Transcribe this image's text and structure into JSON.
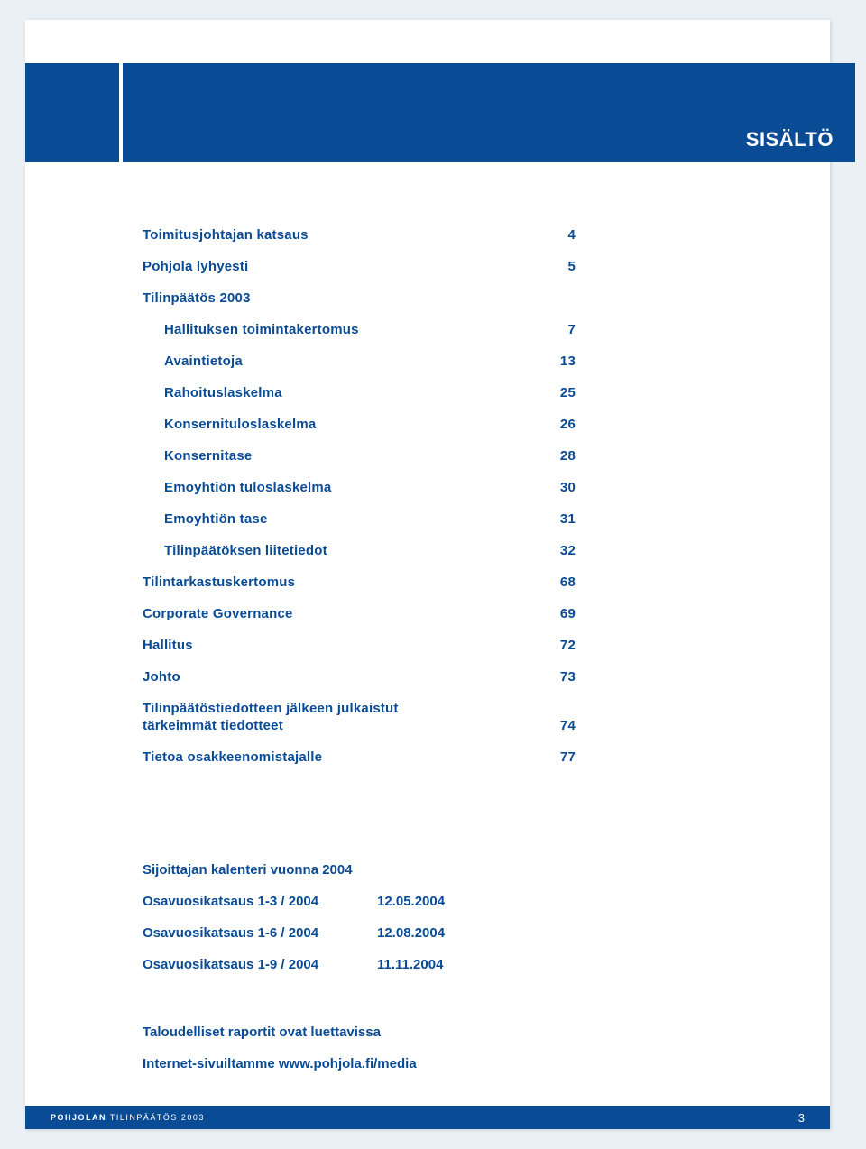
{
  "colors": {
    "brand_blue": "#0a4b95",
    "page_bg": "#eaf0f4",
    "white": "#ffffff"
  },
  "typography": {
    "body_font": "Arial, Helvetica, sans-serif",
    "toc_fontsize": 15,
    "toc_fontweight": 600,
    "header_fontsize": 22,
    "header_fontweight": 700,
    "footer_fontsize": 9
  },
  "header": {
    "title": "SISÄLTÖ"
  },
  "toc": {
    "items": [
      {
        "label": "Toimitusjohtajan katsaus",
        "page": "4",
        "indent": false
      },
      {
        "label": "Pohjola lyhyesti",
        "page": "5",
        "indent": false
      },
      {
        "label": "Tilinpäätös 2003",
        "page": "",
        "indent": false
      },
      {
        "label": "Hallituksen toimintakertomus",
        "page": "7",
        "indent": true
      },
      {
        "label": "Avaintietoja",
        "page": "13",
        "indent": true
      },
      {
        "label": "Rahoituslaskelma",
        "page": "25",
        "indent": true
      },
      {
        "label": "Konsernituloslaskelma",
        "page": "26",
        "indent": true
      },
      {
        "label": "Konsernitase",
        "page": "28",
        "indent": true
      },
      {
        "label": "Emoyhtiön tuloslaskelma",
        "page": "30",
        "indent": true
      },
      {
        "label": "Emoyhtiön tase",
        "page": "31",
        "indent": true
      },
      {
        "label": "Tilinpäätöksen liitetiedot",
        "page": "32",
        "indent": true
      },
      {
        "label": "Tilintarkastuskertomus",
        "page": "68",
        "indent": false
      },
      {
        "label": "Corporate Governance",
        "page": "69",
        "indent": false
      },
      {
        "label": "Hallitus",
        "page": "72",
        "indent": false
      },
      {
        "label": "Johto",
        "page": "73",
        "indent": false
      }
    ],
    "multiline": {
      "line1": "Tilinpäätöstiedotteen jälkeen julkaistut",
      "line2": "tärkeimmät tiedotteet",
      "page": "74"
    },
    "last": {
      "label": "Tietoa osakkeenomistajalle",
      "page": "77"
    }
  },
  "calendar": {
    "title": "Sijoittajan kalenteri vuonna 2004",
    "rows": [
      {
        "label": "Osavuosikatsaus 1-3 / 2004",
        "date": "12.05.2004"
      },
      {
        "label": "Osavuosikatsaus 1-6 / 2004",
        "date": "12.08.2004"
      },
      {
        "label": "Osavuosikatsaus 1-9 / 2004",
        "date": "11.11.2004"
      }
    ]
  },
  "notes": {
    "line1": "Taloudelliset raportit ovat luettavissa",
    "line2": "Internet-sivuiltamme www.pohjola.fi/media"
  },
  "footer": {
    "left_bold": "POHJOLAN",
    "left_rest": " TILINPÄÄTÖS 2003",
    "page_number": "3"
  }
}
